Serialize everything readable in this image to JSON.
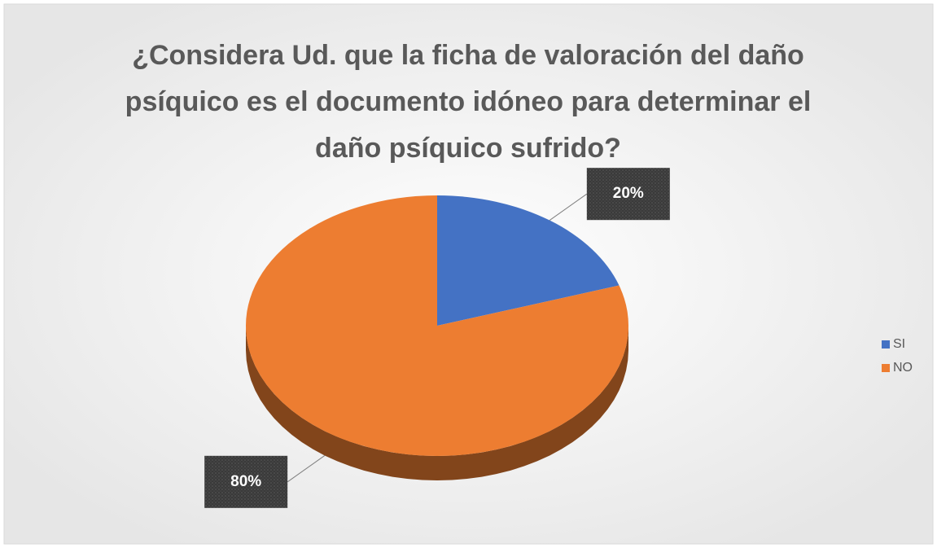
{
  "chart_data": {
    "type": "pie",
    "title": "¿Considera Ud. que la ficha de valoración del daño psíquico es el documento idóneo para determinar el daño psíquico sufrido?",
    "categories": [
      "SI",
      "NO"
    ],
    "values": [
      20,
      80
    ],
    "value_labels": [
      "20%",
      "80%"
    ],
    "colors": [
      "#4472c4",
      "#ed7d31"
    ],
    "legend": "right"
  }
}
